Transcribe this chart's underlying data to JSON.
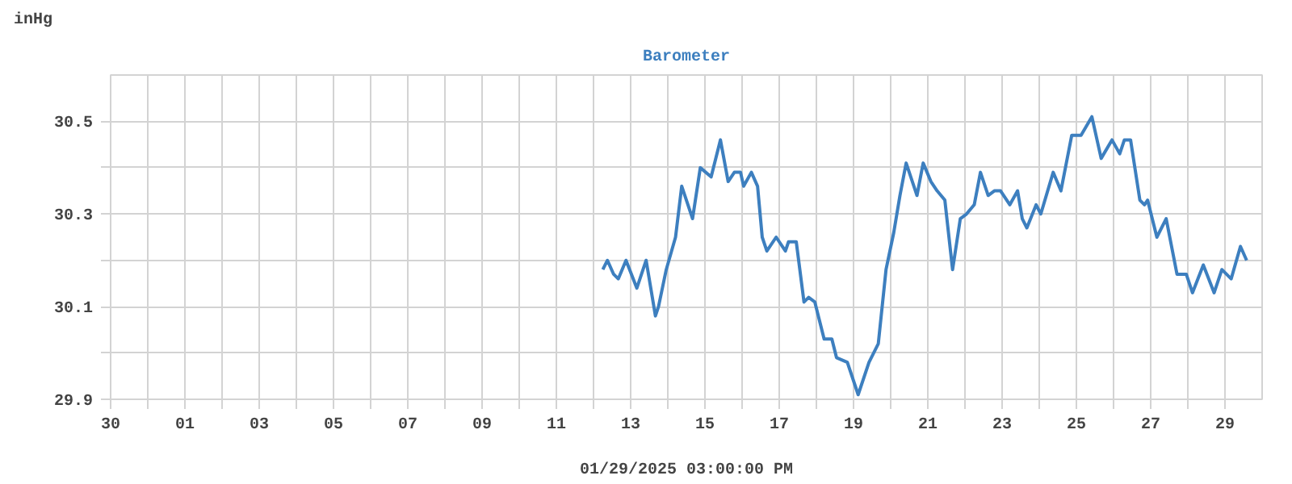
{
  "chart_data": {
    "type": "line",
    "title": "Barometer",
    "ylabel": "inHg",
    "xlabel": "01/29/2025 03:00:00 PM",
    "xlim": [
      "2024-12-30",
      "2025-01-30"
    ],
    "xticks": [
      {
        "value": "2024-12-30",
        "label": "30"
      },
      {
        "value": "2024-12-31",
        "label": null
      },
      {
        "value": "2025-01-01",
        "label": "01"
      },
      {
        "value": "2025-01-02",
        "label": null
      },
      {
        "value": "2025-01-03",
        "label": "03"
      },
      {
        "value": "2025-01-04",
        "label": null
      },
      {
        "value": "2025-01-05",
        "label": "05"
      },
      {
        "value": "2025-01-06",
        "label": null
      },
      {
        "value": "2025-01-07",
        "label": "07"
      },
      {
        "value": "2025-01-08",
        "label": null
      },
      {
        "value": "2025-01-09",
        "label": "09"
      },
      {
        "value": "2025-01-10",
        "label": null
      },
      {
        "value": "2025-01-11",
        "label": "11"
      },
      {
        "value": "2025-01-12",
        "label": null
      },
      {
        "value": "2025-01-13",
        "label": "13"
      },
      {
        "value": "2025-01-14",
        "label": null
      },
      {
        "value": "2025-01-15",
        "label": "15"
      },
      {
        "value": "2025-01-16",
        "label": null
      },
      {
        "value": "2025-01-17",
        "label": "17"
      },
      {
        "value": "2025-01-18",
        "label": null
      },
      {
        "value": "2025-01-19",
        "label": "19"
      },
      {
        "value": "2025-01-20",
        "label": null
      },
      {
        "value": "2025-01-21",
        "label": "21"
      },
      {
        "value": "2025-01-22",
        "label": null
      },
      {
        "value": "2025-01-23",
        "label": "23"
      },
      {
        "value": "2025-01-24",
        "label": null
      },
      {
        "value": "2025-01-25",
        "label": "25"
      },
      {
        "value": "2025-01-26",
        "label": null
      },
      {
        "value": "2025-01-27",
        "label": "27"
      },
      {
        "value": "2025-01-28",
        "label": null
      },
      {
        "value": "2025-01-29",
        "label": "29"
      }
    ],
    "ylim": [
      29.9,
      30.6
    ],
    "yticks": [
      29.9,
      {
        "value": 30.0,
        "label": null
      },
      30.1,
      {
        "value": 30.2,
        "label": null
      },
      30.3,
      {
        "value": 30.4,
        "label": null
      },
      30.5
    ],
    "grid": true,
    "series": [
      {
        "color": "#3d7fbf",
        "line_style": "solid",
        "x": [
          "2025-01-12T06:00",
          "2025-01-12T09:00",
          "2025-01-12T13:00",
          "2025-01-12T16:00",
          "2025-01-12T21:00",
          "2025-01-13T04:00",
          "2025-01-13T10:00",
          "2025-01-13T16:00",
          "2025-01-13T18:00",
          "2025-01-13T23:00",
          "2025-01-14T05:00",
          "2025-01-14T09:00",
          "2025-01-14T16:00",
          "2025-01-14T21:00",
          "2025-01-15T04:00",
          "2025-01-15T10:00",
          "2025-01-15T15:00",
          "2025-01-15T19:00",
          "2025-01-15T23:00",
          "2025-01-16T01:00",
          "2025-01-16T06:00",
          "2025-01-16T10:00",
          "2025-01-16T13:00",
          "2025-01-16T16:00",
          "2025-01-16T22:00",
          "2025-01-17T04:00",
          "2025-01-17T06:00",
          "2025-01-17T11:00",
          "2025-01-17T16:00",
          "2025-01-17T19:00",
          "2025-01-17T23:00",
          "2025-01-18T05:00",
          "2025-01-18T10:00",
          "2025-01-18T13:00",
          "2025-01-18T20:00",
          "2025-01-19T03:00",
          "2025-01-19T10:00",
          "2025-01-19T16:00",
          "2025-01-19T21:00",
          "2025-01-20T02:00",
          "2025-01-20T06:00",
          "2025-01-20T10:00",
          "2025-01-20T17:00",
          "2025-01-20T21:00",
          "2025-01-21T02:00",
          "2025-01-21T06:00",
          "2025-01-21T11:00",
          "2025-01-21T16:00",
          "2025-01-21T21:00",
          "2025-01-22T01:00",
          "2025-01-22T06:00",
          "2025-01-22T10:00",
          "2025-01-22T15:00",
          "2025-01-22T19:00",
          "2025-01-22T23:00",
          "2025-01-23T05:00",
          "2025-01-23T10:00",
          "2025-01-23T13:00",
          "2025-01-23T16:00",
          "2025-01-23T22:00",
          "2025-01-24T01:00",
          "2025-01-24T09:00",
          "2025-01-24T14:00",
          "2025-01-24T21:00",
          "2025-01-25T03:00",
          "2025-01-25T10:00",
          "2025-01-25T16:00",
          "2025-01-25T23:00",
          "2025-01-26T04:00",
          "2025-01-26T07:00",
          "2025-01-26T11:00",
          "2025-01-26T17:00",
          "2025-01-26T20:00",
          "2025-01-26T22:00",
          "2025-01-27T04:00",
          "2025-01-27T10:00",
          "2025-01-27T17:00",
          "2025-01-27T23:00",
          "2025-01-28T03:00",
          "2025-01-28T10:00",
          "2025-01-28T17:00",
          "2025-01-28T22:00",
          "2025-01-29T04:00",
          "2025-01-29T10:00",
          "2025-01-29T14:00"
        ],
        "values": [
          30.18,
          30.2,
          30.17,
          30.16,
          30.2,
          30.14,
          30.2,
          30.08,
          30.1,
          30.18,
          30.25,
          30.36,
          30.29,
          30.4,
          30.38,
          30.46,
          30.37,
          30.39,
          30.39,
          30.36,
          30.39,
          30.36,
          30.25,
          30.22,
          30.25,
          30.22,
          30.24,
          30.24,
          30.11,
          30.12,
          30.11,
          30.03,
          30.03,
          29.99,
          29.98,
          29.91,
          29.98,
          30.02,
          30.18,
          30.26,
          30.34,
          30.41,
          30.34,
          30.41,
          30.37,
          30.35,
          30.33,
          30.18,
          30.29,
          30.3,
          30.32,
          30.39,
          30.34,
          30.35,
          30.35,
          30.32,
          30.35,
          30.29,
          30.27,
          30.32,
          30.3,
          30.39,
          30.35,
          30.47,
          30.47,
          30.51,
          30.42,
          30.46,
          30.43,
          30.46,
          30.46,
          30.33,
          30.32,
          30.33,
          30.25,
          30.29,
          30.17,
          30.17,
          30.13,
          30.19,
          30.13,
          30.18,
          30.16,
          30.23,
          30.2
        ]
      }
    ]
  }
}
